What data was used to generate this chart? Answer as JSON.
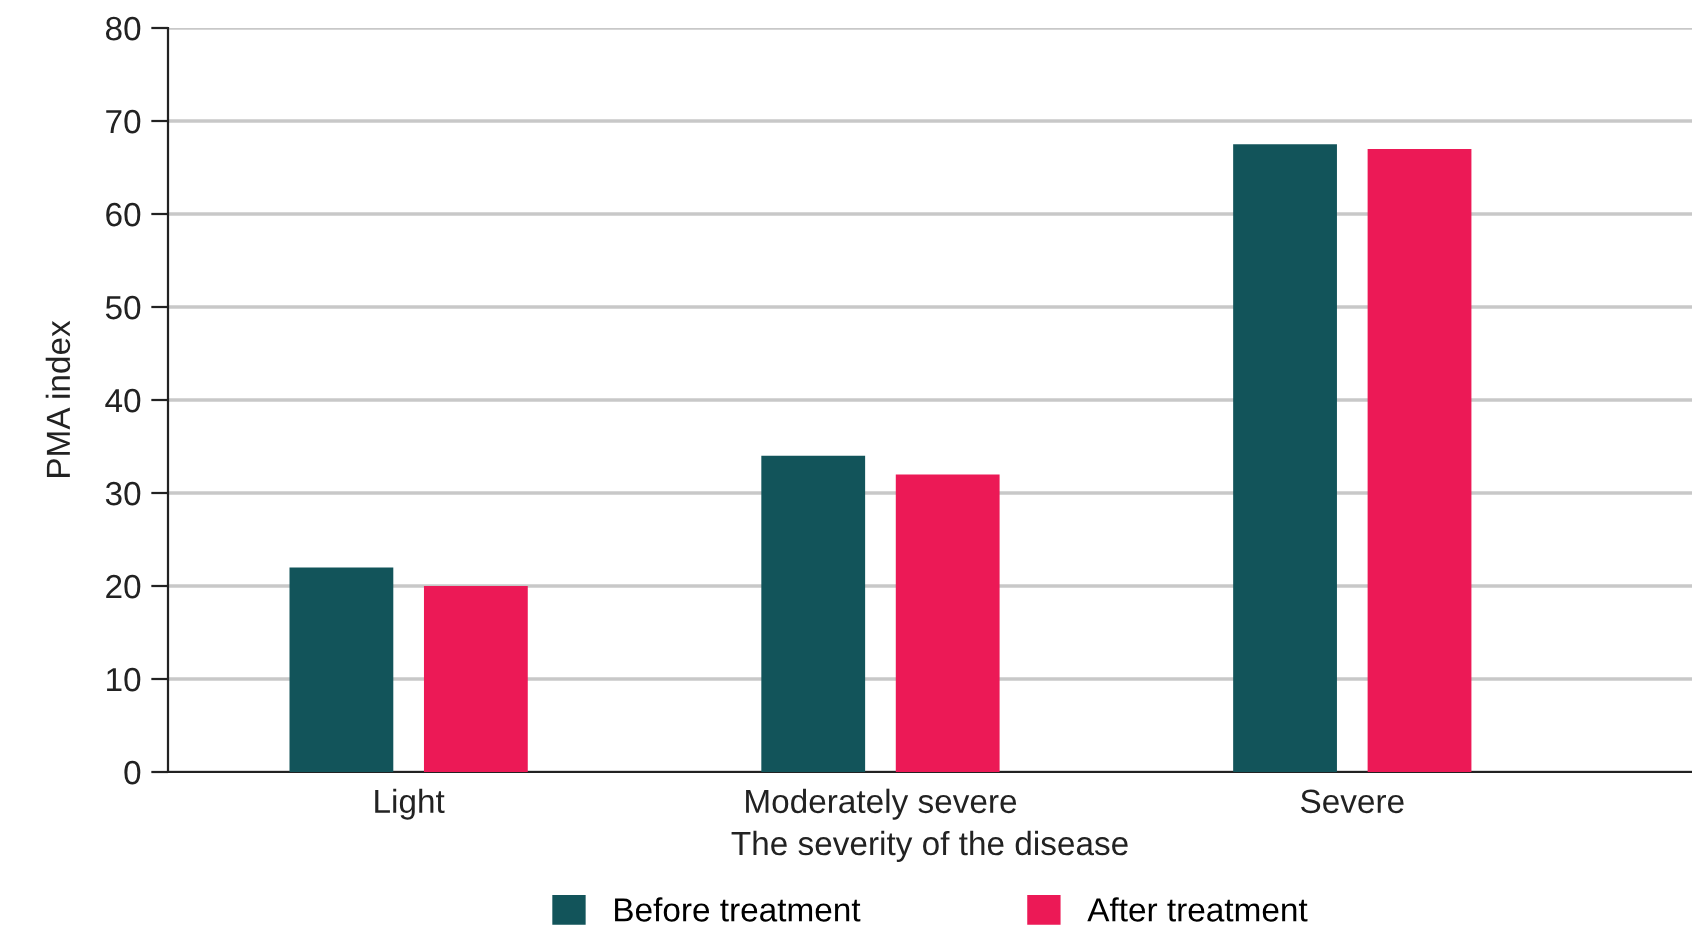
{
  "chart_data": {
    "type": "bar",
    "xlabel": "The severity of the disease",
    "ylabel": "PMA index",
    "categories": [
      "Light",
      "Moderately severe",
      "Severe"
    ],
    "series": [
      {
        "name": "Before treatment",
        "color": "#12545a",
        "values": [
          22,
          34,
          67.5
        ]
      },
      {
        "name": "After treatment",
        "color": "#ec1956",
        "values": [
          20,
          32,
          67
        ]
      }
    ],
    "ylim": [
      0,
      80
    ],
    "yticks": [
      0,
      10,
      20,
      30,
      40,
      50,
      60,
      70,
      80
    ],
    "grid": "y",
    "legend": "bottom"
  }
}
